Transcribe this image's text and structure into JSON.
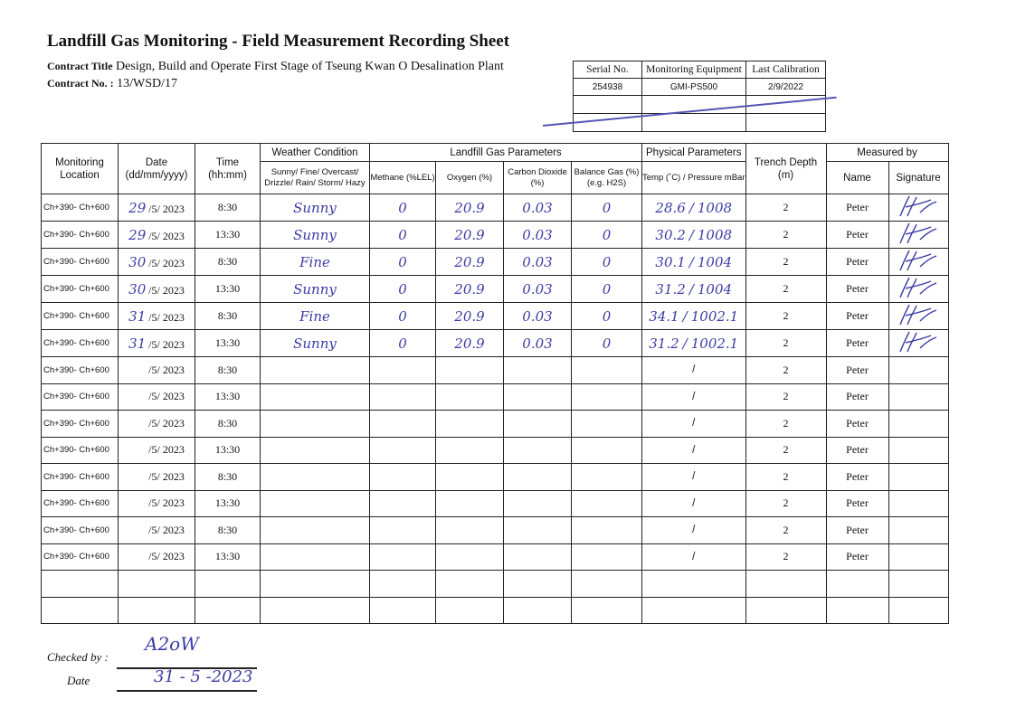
{
  "title": "Landfill Gas Monitoring - Field Measurement Recording Sheet",
  "contract": {
    "title_label": "Contract Title",
    "title_value": "Design, Build and Operate First Stage of Tseung Kwan O Desalination Plant",
    "no_label": "Contract No. :",
    "no_value": "13/WSD/17"
  },
  "equipment": {
    "headers": [
      "Serial No.",
      "Monitoring Equipment",
      "Last Calibration"
    ],
    "serial": "254938",
    "equipment": "GMI-PS500",
    "calibration": "2/9/2022"
  },
  "table": {
    "headers": {
      "location": "Monitoring Location",
      "date": "Date (dd/mm/yyyy)",
      "time": "Time (hh:mm)",
      "weather": "Weather Condition",
      "weather_sub": "Sunny/ Fine/ Overcast/ Drizzle/ Rain/ Storm/ Hazy",
      "gas": "Landfill Gas Parameters",
      "methane": "Methane (%LEL)",
      "oxygen": "Oxygen (%)",
      "co2": "Carbon Dioxide (%)",
      "balance": "Balance Gas (%) (e.g. H2S)",
      "physical": "Physical Parameters",
      "temp": "Temp (˚C) / Pressure mBar",
      "trench": "Trench Depth (m)",
      "measured": "Measured by",
      "name": "Name",
      "signature": "Signature"
    },
    "rows": [
      {
        "location": "Ch+390- Ch+600",
        "day": "29",
        "date": "/5/ 2023",
        "time": "8:30",
        "weather": "Sunny",
        "methane": "0",
        "oxygen": "20.9",
        "co2": "0.03",
        "balance": "0",
        "temp": "28.6",
        "pressure": "1008",
        "tp_sep": "/",
        "depth": "2",
        "name": "Peter",
        "signature": "Peter"
      },
      {
        "location": "Ch+390- Ch+600",
        "day": "29",
        "date": "/5/ 2023",
        "time": "13:30",
        "weather": "Sunny",
        "methane": "0",
        "oxygen": "20.9",
        "co2": "0.03",
        "balance": "0",
        "temp": "30.2",
        "pressure": "1008",
        "tp_sep": "/",
        "depth": "2",
        "name": "Peter",
        "signature": "Peter"
      },
      {
        "location": "Ch+390- Ch+600",
        "day": "30",
        "date": "/5/ 2023",
        "time": "8:30",
        "weather": "Fine",
        "methane": "0",
        "oxygen": "20.9",
        "co2": "0.03",
        "balance": "0",
        "temp": "30.1",
        "pressure": "1004",
        "tp_sep": "/",
        "depth": "2",
        "name": "Peter",
        "signature": "Peter"
      },
      {
        "location": "Ch+390- Ch+600",
        "day": "30",
        "date": "/5/ 2023",
        "time": "13:30",
        "weather": "Sunny",
        "methane": "0",
        "oxygen": "20.9",
        "co2": "0.03",
        "balance": "0",
        "temp": "31.2",
        "pressure": "1004",
        "tp_sep": "/",
        "depth": "2",
        "name": "Peter",
        "signature": "Peter"
      },
      {
        "location": "Ch+390- Ch+600",
        "day": "31",
        "date": "/5/ 2023",
        "time": "8:30",
        "weather": "Fine",
        "methane": "0",
        "oxygen": "20.9",
        "co2": "0.03",
        "balance": "0",
        "temp": "34.1",
        "pressure": "1002.1",
        "tp_sep": "/",
        "depth": "2",
        "name": "Peter",
        "signature": "Peter"
      },
      {
        "location": "Ch+390- Ch+600",
        "day": "31",
        "date": "/5/ 2023",
        "time": "13:30",
        "weather": "Sunny",
        "methane": "0",
        "oxygen": "20.9",
        "co2": "0.03",
        "balance": "0",
        "temp": "31.2",
        "pressure": "1002.1",
        "tp_sep": "/",
        "depth": "2",
        "name": "Peter",
        "signature": "Peter"
      },
      {
        "location": "Ch+390- Ch+600",
        "day": "",
        "date": "/5/ 2023",
        "time": "8:30",
        "tp_sep": "/",
        "depth": "2",
        "name": "Peter"
      },
      {
        "location": "Ch+390- Ch+600",
        "day": "",
        "date": "/5/ 2023",
        "time": "13:30",
        "tp_sep": "/",
        "depth": "2",
        "name": "Peter"
      },
      {
        "location": "Ch+390- Ch+600",
        "day": "",
        "date": "/5/ 2023",
        "time": "8:30",
        "tp_sep": "/",
        "depth": "2",
        "name": "Peter"
      },
      {
        "location": "Ch+390- Ch+600",
        "day": "",
        "date": "/5/ 2023",
        "time": "13:30",
        "tp_sep": "/",
        "depth": "2",
        "name": "Peter"
      },
      {
        "location": "Ch+390- Ch+600",
        "day": "",
        "date": "/5/ 2023",
        "time": "8:30",
        "tp_sep": "/",
        "depth": "2",
        "name": "Peter"
      },
      {
        "location": "Ch+390- Ch+600",
        "day": "",
        "date": "/5/ 2023",
        "time": "13:30",
        "tp_sep": "/",
        "depth": "2",
        "name": "Peter"
      },
      {
        "location": "Ch+390- Ch+600",
        "day": "",
        "date": "/5/ 2023",
        "time": "8:30",
        "tp_sep": "/",
        "depth": "2",
        "name": "Peter"
      },
      {
        "location": "Ch+390- Ch+600",
        "day": "",
        "date": "/5/ 2023",
        "time": "13:30",
        "tp_sep": "/",
        "depth": "2",
        "name": "Peter"
      },
      {},
      {}
    ]
  },
  "checked": {
    "label": "Checked by :",
    "value": "A2oW",
    "date_label": "Date",
    "date_value": "31 - 5 -2023"
  },
  "colors": {
    "ink": "#3c3ca6"
  }
}
